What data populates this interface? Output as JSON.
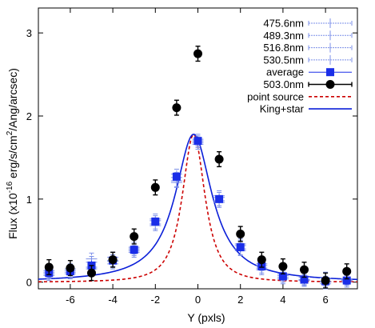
{
  "chart_data": {
    "type": "scatter",
    "title": "",
    "xlabel": "Y (pxls)",
    "ylabel_parts": {
      "prefix": "Flux (x10",
      "sup1": "-16",
      "mid": " erg/s/cm",
      "sup2": "2",
      "suffix": "/Ang/arcsec)"
    },
    "xlim": [
      -7.5,
      7.5
    ],
    "ylim": [
      -0.08,
      3.3
    ],
    "xticks": [
      -6,
      -4,
      -2,
      0,
      2,
      4,
      6
    ],
    "yticks": [
      0,
      1,
      2,
      3
    ],
    "grid": false,
    "legend_position": "top-right",
    "series": [
      {
        "name": "475.6nm",
        "style": "errorbar",
        "color": "#7b8fe8",
        "x": [
          -7,
          -6,
          -5,
          -4,
          -3,
          -2,
          -1,
          0,
          1,
          2,
          3,
          4,
          5,
          6,
          7
        ],
        "y": [
          0.12,
          0.14,
          0.24,
          0.26,
          0.36,
          0.68,
          1.22,
          1.7,
          0.98,
          0.4,
          0.17,
          0.06,
          0.02,
          0.0,
          0.02
        ],
        "err": [
          0.06,
          0.06,
          0.07,
          0.07,
          0.06,
          0.06,
          0.07,
          0.06,
          0.06,
          0.07,
          0.06,
          0.06,
          0.07,
          0.07,
          0.06
        ]
      },
      {
        "name": "489.3nm",
        "style": "errorbar",
        "color": "#7b8fe8",
        "x": [
          -7,
          -6,
          -5,
          -4,
          -3,
          -2,
          -1,
          0,
          1,
          2,
          3,
          4,
          5,
          6,
          7
        ],
        "y": [
          0.1,
          0.12,
          0.18,
          0.25,
          0.4,
          0.74,
          1.26,
          1.68,
          1.02,
          0.44,
          0.2,
          0.08,
          0.03,
          0.01,
          0.03
        ],
        "err": [
          0.06,
          0.06,
          0.06,
          0.06,
          0.06,
          0.06,
          0.06,
          0.06,
          0.06,
          0.06,
          0.06,
          0.06,
          0.06,
          0.06,
          0.06
        ]
      },
      {
        "name": "516.8nm",
        "style": "errorbar",
        "color": "#7b8fe8",
        "x": [
          -7,
          -6,
          -5,
          -4,
          -3,
          -2,
          -1,
          0,
          1,
          2,
          3,
          4,
          5,
          6,
          7
        ],
        "y": [
          0.14,
          0.16,
          0.28,
          0.3,
          0.42,
          0.76,
          1.3,
          1.72,
          1.04,
          0.46,
          0.22,
          0.1,
          0.06,
          0.05,
          0.04
        ],
        "err": [
          0.06,
          0.06,
          0.07,
          0.06,
          0.06,
          0.06,
          0.06,
          0.06,
          0.06,
          0.06,
          0.06,
          0.06,
          0.06,
          0.07,
          0.06
        ]
      },
      {
        "name": "530.5nm",
        "style": "errorbar",
        "color": "#7b8fe8",
        "x": [
          -7,
          -6,
          -5,
          -4,
          -3,
          -2,
          -1,
          0,
          1,
          2,
          3,
          4,
          5,
          6,
          7
        ],
        "y": [
          0.08,
          0.1,
          0.16,
          0.22,
          0.38,
          0.7,
          1.2,
          1.66,
          0.96,
          0.38,
          0.15,
          0.04,
          0.02,
          -0.02,
          0.0
        ],
        "err": [
          0.06,
          0.06,
          0.06,
          0.06,
          0.06,
          0.06,
          0.06,
          0.06,
          0.06,
          0.06,
          0.06,
          0.06,
          0.06,
          0.06,
          0.06
        ]
      },
      {
        "name": "average",
        "style": "square",
        "color": "#1a2ee8",
        "x": [
          -7,
          -6,
          -5,
          -4,
          -3,
          -2,
          -1,
          0,
          1,
          2,
          3,
          4,
          5,
          6,
          7
        ],
        "y": [
          0.11,
          0.13,
          0.2,
          0.26,
          0.39,
          0.73,
          1.27,
          1.7,
          1.0,
          0.42,
          0.19,
          0.07,
          0.03,
          0.01,
          0.02
        ],
        "err": [
          0.05,
          0.05,
          0.06,
          0.05,
          0.05,
          0.05,
          0.05,
          0.05,
          0.05,
          0.05,
          0.05,
          0.05,
          0.05,
          0.05,
          0.05
        ]
      },
      {
        "name": "503.0nm",
        "style": "circle",
        "color": "#000000",
        "x": [
          -7,
          -6,
          -5,
          -4,
          -3,
          -2,
          -1,
          0,
          1,
          2,
          3,
          4,
          5,
          6,
          7
        ],
        "y": [
          0.18,
          0.17,
          0.11,
          0.27,
          0.55,
          1.14,
          2.1,
          2.75,
          1.48,
          0.58,
          0.27,
          0.19,
          0.15,
          0.02,
          0.13
        ],
        "err": [
          0.09,
          0.09,
          0.09,
          0.09,
          0.09,
          0.09,
          0.09,
          0.09,
          0.09,
          0.09,
          0.09,
          0.09,
          0.09,
          0.09,
          0.09
        ]
      },
      {
        "name": "point source",
        "style": "dashed",
        "color": "#cc0000",
        "curve": {
          "amp": 1.78,
          "center": -0.2,
          "core": 0.75,
          "power": 1.3,
          "offset": 0.0
        }
      },
      {
        "name": "King+star",
        "style": "solid",
        "color": "#0b1fd8",
        "curve": {
          "amp": 1.78,
          "center": -0.2,
          "core": 1.05,
          "power": 1.0,
          "offset": 0.0
        }
      }
    ]
  }
}
